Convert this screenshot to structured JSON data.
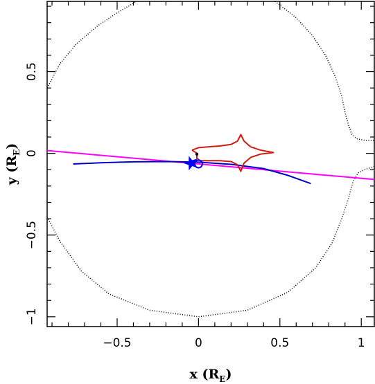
{
  "chart_data": {
    "type": "line",
    "xlabel_main": "x (R",
    "xlabel_sub": "E",
    "xlabel_end": ")",
    "ylabel_main": "y (R",
    "ylabel_sub": "E",
    "ylabel_end": ")",
    "xlim": [
      -0.93,
      1.08
    ],
    "ylim": [
      -1.06,
      0.93
    ],
    "xticks": [
      {
        "value": -0.5,
        "label": "−0.5"
      },
      {
        "value": 0,
        "label": "0"
      },
      {
        "value": 0.5,
        "label": "0.5"
      },
      {
        "value": 1,
        "label": "1"
      }
    ],
    "yticks": [
      {
        "value": -1,
        "label": "−1"
      },
      {
        "value": -0.5,
        "label": "−0.5"
      },
      {
        "value": 0,
        "label": "0"
      },
      {
        "value": 0.5,
        "label": "0.5"
      }
    ],
    "grid": false,
    "series": [
      {
        "style": "dotted",
        "color": "#000000",
        "points": [
          [
            -0.93,
            0.4
          ],
          [
            -0.85,
            0.55
          ],
          [
            -0.75,
            0.67
          ],
          [
            -0.62,
            0.78
          ],
          [
            -0.5,
            0.86
          ],
          [
            -0.38,
            0.93
          ]
        ]
      },
      {
        "style": "dotted",
        "color": "#000000",
        "points": [
          [
            -0.93,
            -0.39
          ],
          [
            -0.85,
            -0.54
          ],
          [
            -0.72,
            -0.72
          ],
          [
            -0.55,
            -0.86
          ],
          [
            -0.3,
            -0.96
          ],
          [
            0.0,
            -1.0
          ],
          [
            0.3,
            -0.96
          ],
          [
            0.55,
            -0.85
          ],
          [
            0.72,
            -0.7
          ],
          [
            0.82,
            -0.55
          ],
          [
            0.88,
            -0.4
          ],
          [
            0.92,
            -0.28
          ],
          [
            0.95,
            -0.17
          ],
          [
            0.98,
            -0.12
          ],
          [
            1.02,
            -0.1
          ],
          [
            1.08,
            -0.08
          ]
        ]
      },
      {
        "style": "dotted",
        "color": "#000000",
        "points": [
          [
            0.47,
            0.93
          ],
          [
            0.6,
            0.83
          ],
          [
            0.7,
            0.72
          ],
          [
            0.78,
            0.6
          ],
          [
            0.84,
            0.47
          ],
          [
            0.88,
            0.35
          ],
          [
            0.9,
            0.25
          ],
          [
            0.92,
            0.18
          ],
          [
            0.94,
            0.12
          ],
          [
            0.97,
            0.09
          ],
          [
            1.02,
            0.08
          ],
          [
            1.08,
            0.08
          ]
        ]
      },
      {
        "style": "solid",
        "color": "#ff00ff",
        "points": [
          [
            -0.93,
            0.017
          ],
          [
            1.08,
            -0.16
          ]
        ]
      },
      {
        "style": "solid",
        "color": "#0000c8",
        "points": [
          [
            -0.77,
            -0.065
          ],
          [
            -0.6,
            -0.058
          ],
          [
            -0.4,
            -0.052
          ],
          [
            -0.2,
            -0.05
          ],
          [
            0.0,
            -0.054
          ],
          [
            0.2,
            -0.067
          ],
          [
            0.4,
            -0.093
          ],
          [
            0.55,
            -0.135
          ],
          [
            0.69,
            -0.185
          ]
        ]
      },
      {
        "style": "solid",
        "color": "#d01c10",
        "points": [
          [
            -0.04,
            0.02
          ],
          [
            0.0,
            0.035
          ],
          [
            0.06,
            0.04
          ],
          [
            0.13,
            0.045
          ],
          [
            0.2,
            0.055
          ],
          [
            0.24,
            0.075
          ],
          [
            0.26,
            0.115
          ],
          [
            0.28,
            0.075
          ],
          [
            0.32,
            0.04
          ],
          [
            0.38,
            0.02
          ],
          [
            0.46,
            0.005
          ],
          [
            0.38,
            -0.005
          ],
          [
            0.32,
            -0.025
          ],
          [
            0.28,
            -0.06
          ],
          [
            0.26,
            -0.11
          ],
          [
            0.24,
            -0.07
          ],
          [
            0.2,
            -0.05
          ],
          [
            0.13,
            -0.045
          ],
          [
            0.06,
            -0.045
          ],
          [
            0.01,
            -0.045
          ],
          [
            -0.01,
            -0.03
          ],
          [
            -0.01,
            0.0
          ],
          [
            -0.04,
            0.02
          ]
        ]
      }
    ],
    "markers": [
      {
        "shape": "open-circle",
        "color": "#0000ff",
        "x": 0.0,
        "y": -0.065
      },
      {
        "shape": "star",
        "color": "#0000ff",
        "x": -0.045,
        "y": -0.06
      },
      {
        "shape": "dot",
        "color": "#000000",
        "x": -0.01,
        "y": -0.005
      }
    ]
  }
}
